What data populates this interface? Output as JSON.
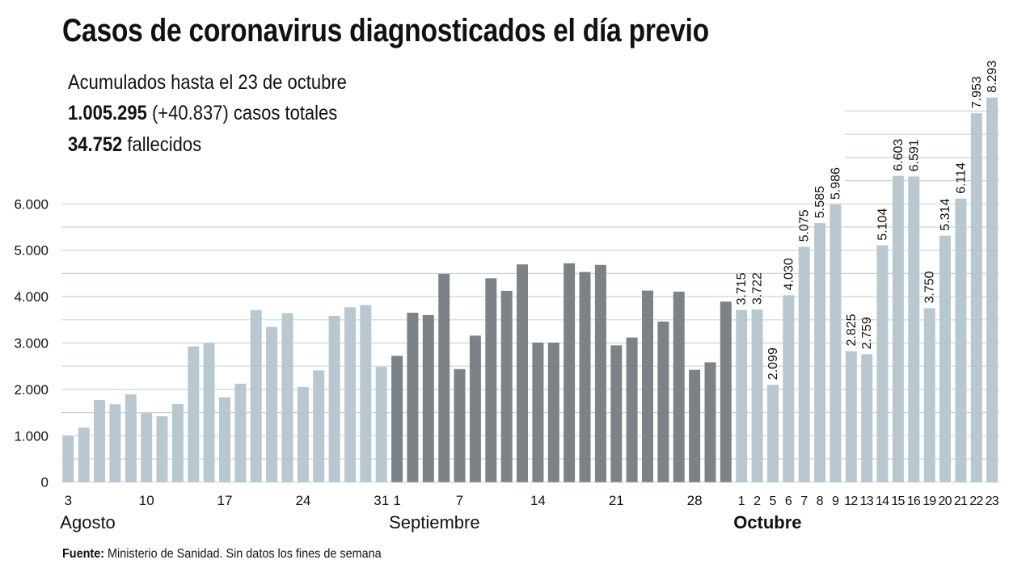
{
  "header": {
    "title": "Casos de coronavirus diagnosticados el día previo",
    "subtitle": "Acumulados hasta el 23 de octubre",
    "total_cases_bold": "1.005.295",
    "total_cases_rest": " (+40.837) casos totales",
    "deaths_bold": "34.752",
    "deaths_rest": " fallecidos"
  },
  "footer": {
    "source_label": "Fuente:",
    "source_text": " Ministerio de Sanidad. Sin datos los fines de semana"
  },
  "colors": {
    "august": "#b9c7d0",
    "september": "#7b8388",
    "october": "#b9c7d0",
    "grid": "#ccd4d9",
    "text": "#111111"
  },
  "chart_data": {
    "type": "bar",
    "title": "Casos de coronavirus diagnosticados el día previo",
    "xlabel": "",
    "ylabel": "",
    "ylim": [
      0,
      8500
    ],
    "grid": true,
    "grid_step": 500,
    "yticks": [
      {
        "value": 0,
        "label": "0"
      },
      {
        "value": 1000,
        "label": "1.000"
      },
      {
        "value": 2000,
        "label": "2.000"
      },
      {
        "value": 3000,
        "label": "3.000"
      },
      {
        "value": 4000,
        "label": "4.000"
      },
      {
        "value": 5000,
        "label": "5.000"
      },
      {
        "value": 6000,
        "label": "6.000"
      }
    ],
    "series": [
      {
        "name": "Agosto",
        "month_label": "Agosto",
        "color_key": "august",
        "days": [
          3,
          4,
          5,
          6,
          7,
          10,
          11,
          12,
          13,
          14,
          17,
          18,
          19,
          20,
          21,
          24,
          25,
          26,
          27,
          28,
          31
        ],
        "values": [
          1000,
          1176,
          1770,
          1682,
          1892,
          1490,
          1420,
          1687,
          2927,
          2997,
          1827,
          2124,
          3707,
          3346,
          3642,
          2054,
          2409,
          3585,
          3770,
          3817,
          2485
        ],
        "tick_labels": {
          "3": "3",
          "10": "10",
          "17": "17",
          "24": "24",
          "31": "31"
        },
        "show_value_labels": false
      },
      {
        "name": "Septiembre",
        "month_label": "Septiembre",
        "color_key": "september",
        "days": [
          1,
          2,
          3,
          4,
          7,
          8,
          9,
          10,
          11,
          14,
          15,
          16,
          17,
          18,
          21,
          22,
          23,
          24,
          25,
          28,
          29,
          30
        ],
        "values": [
          2723,
          3654,
          3602,
          4492,
          2438,
          3159,
          4398,
          4126,
          4695,
          3009,
          3009,
          4719,
          4532,
          4684,
          2950,
          3119,
          4131,
          3462,
          4108,
          2421,
          2583,
          3892
        ],
        "tick_labels": {
          "1": "1",
          "7": "7",
          "14": "14",
          "21": "21",
          "28": "28"
        },
        "show_value_labels": false
      },
      {
        "name": "Octubre",
        "month_label": "Octubre",
        "color_key": "october",
        "days": [
          1,
          2,
          5,
          6,
          7,
          8,
          9,
          12,
          13,
          14,
          15,
          16,
          19,
          20,
          21,
          22,
          23
        ],
        "values": [
          3715,
          3722,
          2099,
          4030,
          5075,
          5585,
          5986,
          2825,
          2759,
          5104,
          6603,
          6591,
          3750,
          5314,
          6114,
          7953,
          8293
        ],
        "value_labels": [
          "3.715",
          "3.722",
          "2.099",
          "4.030",
          "5.075",
          "5.585",
          "5.986",
          "2.825",
          "2.759",
          "5.104",
          "6.603",
          "6.591",
          "3.750",
          "5.314",
          "6.114",
          "7.953",
          "8.293"
        ],
        "tick_labels": {
          "1": "1",
          "2": "2",
          "5": "5",
          "6": "6",
          "7": "7",
          "8": "8",
          "9": "9",
          "12": "12",
          "13": "13",
          "14": "14",
          "15": "15",
          "16": "16",
          "19": "19",
          "20": "20",
          "21": "21",
          "22": "22",
          "23": "23"
        },
        "show_value_labels": true
      }
    ]
  }
}
